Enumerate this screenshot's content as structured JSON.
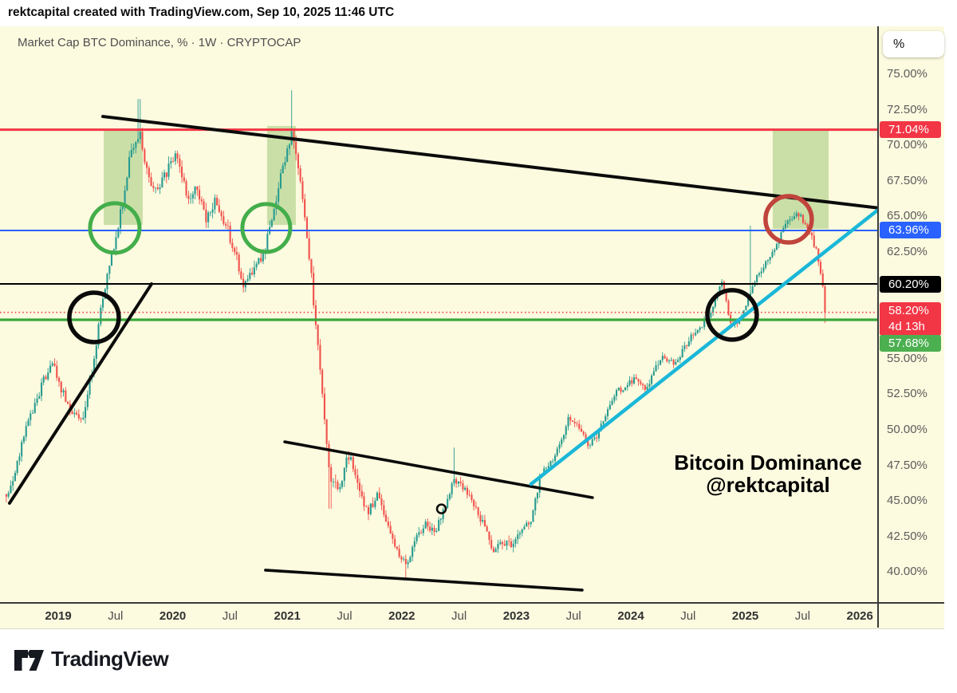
{
  "attribution": "rektcapital created with TradingView.com, Sep 10, 2025 11:46 UTC",
  "chart_title": "Market Cap BTC Dominance, % · 1W · CRYPTOCAP",
  "watermark": {
    "line1": "Bitcoin Dominance",
    "line2": "@rektcapital"
  },
  "axis_unit_button": "%",
  "footer_brand": "TradingView",
  "chart_data": {
    "type": "candlestick",
    "title": "Market Cap BTC Dominance, %",
    "timeframe": "1W",
    "symbol": "CRYPTOCAP",
    "colors": {
      "background": "#FCFADF",
      "candle_up": "#279B8F",
      "candle_down": "#F0514B",
      "level_red": "#F23645",
      "level_blue": "#2962FF",
      "level_black": "#000000",
      "level_green": "#3AA63A",
      "trend_black": "#0b0b0b",
      "trend_cyan": "#1AB7D8",
      "circle_green": "#43AE4B",
      "circle_red": "#C0443C",
      "box_green": "#8FBE63"
    },
    "y_axis": {
      "unit": "%",
      "ticks_visible": [
        75.0,
        72.5,
        70.0,
        67.5,
        65.0,
        62.5,
        55.0,
        52.5,
        50.0,
        47.5,
        45.0,
        42.5,
        40.0
      ]
    },
    "x_axis": {
      "ticks": [
        {
          "t": 2019.0,
          "label": "2019",
          "major": true
        },
        {
          "t": 2019.5,
          "label": "Jul",
          "major": false
        },
        {
          "t": 2020.0,
          "label": "2020",
          "major": true
        },
        {
          "t": 2020.5,
          "label": "Jul",
          "major": false
        },
        {
          "t": 2021.0,
          "label": "2021",
          "major": true
        },
        {
          "t": 2021.5,
          "label": "Jul",
          "major": false
        },
        {
          "t": 2022.0,
          "label": "2022",
          "major": true
        },
        {
          "t": 2022.5,
          "label": "Jul",
          "major": false
        },
        {
          "t": 2023.0,
          "label": "2023",
          "major": true
        },
        {
          "t": 2023.5,
          "label": "Jul",
          "major": false
        },
        {
          "t": 2024.0,
          "label": "2024",
          "major": true
        },
        {
          "t": 2024.5,
          "label": "Jul",
          "major": false
        },
        {
          "t": 2025.0,
          "label": "2025",
          "major": true
        },
        {
          "t": 2025.5,
          "label": "Jul",
          "major": false
        },
        {
          "t": 2026.0,
          "label": "2026",
          "major": true
        }
      ]
    },
    "weekly_close_anchors": [
      [
        "2018-07",
        45.3
      ],
      [
        "2018-08",
        47.0
      ],
      [
        "2018-09",
        50.0
      ],
      [
        "2018-10",
        51.5
      ],
      [
        "2018-11",
        53.5
      ],
      [
        "2018-12",
        54.5
      ],
      [
        "2019-01",
        52.5
      ],
      [
        "2019-02",
        51.0
      ],
      [
        "2019-03",
        50.8
      ],
      [
        "2019-04",
        54.0
      ],
      [
        "2019-05",
        58.5
      ],
      [
        "2019-06",
        62.0
      ],
      [
        "2019-07",
        65.0
      ],
      [
        "2019-08",
        69.0
      ],
      [
        "2019-09",
        71.0
      ],
      [
        "2019-10",
        67.5
      ],
      [
        "2019-11",
        66.8
      ],
      [
        "2019-12",
        68.3
      ],
      [
        "2020-01",
        69.3
      ],
      [
        "2020-02",
        66.3
      ],
      [
        "2020-03",
        67.0
      ],
      [
        "2020-04",
        64.8
      ],
      [
        "2020-05",
        66.0
      ],
      [
        "2020-06",
        64.5
      ],
      [
        "2020-07",
        62.5
      ],
      [
        "2020-08",
        60.0
      ],
      [
        "2020-09",
        61.3
      ],
      [
        "2020-10",
        62.3
      ],
      [
        "2020-11",
        65.0
      ],
      [
        "2020-12",
        68.3
      ],
      [
        "2021-01",
        70.8
      ],
      [
        "2021-02",
        66.8
      ],
      [
        "2021-03",
        61.0
      ],
      [
        "2021-04",
        53.5
      ],
      [
        "2021-05",
        46.3
      ],
      [
        "2021-06",
        46.0
      ],
      [
        "2021-07",
        48.3
      ],
      [
        "2021-08",
        45.8
      ],
      [
        "2021-09",
        44.2
      ],
      [
        "2021-10",
        45.5
      ],
      [
        "2021-11",
        43.2
      ],
      [
        "2021-12",
        41.4
      ],
      [
        "2022-01",
        40.4
      ],
      [
        "2022-02",
        42.4
      ],
      [
        "2022-03",
        43.4
      ],
      [
        "2022-04",
        42.6
      ],
      [
        "2022-05",
        44.6
      ],
      [
        "2022-06",
        46.4
      ],
      [
        "2022-07",
        45.9
      ],
      [
        "2022-08",
        44.6
      ],
      [
        "2022-09",
        43.4
      ],
      [
        "2022-10",
        41.4
      ],
      [
        "2022-11",
        42.1
      ],
      [
        "2022-12",
        41.8
      ],
      [
        "2023-01",
        43.0
      ],
      [
        "2023-02",
        43.4
      ],
      [
        "2023-03",
        46.6
      ],
      [
        "2023-04",
        47.6
      ],
      [
        "2023-05",
        48.7
      ],
      [
        "2023-06",
        50.9
      ],
      [
        "2023-07",
        50.1
      ],
      [
        "2023-08",
        48.9
      ],
      [
        "2023-09",
        49.6
      ],
      [
        "2023-10",
        51.2
      ],
      [
        "2023-11",
        52.6
      ],
      [
        "2023-12",
        53.0
      ],
      [
        "2024-01",
        53.6
      ],
      [
        "2024-02",
        52.6
      ],
      [
        "2024-03",
        54.2
      ],
      [
        "2024-04",
        55.1
      ],
      [
        "2024-05",
        54.6
      ],
      [
        "2024-06",
        55.6
      ],
      [
        "2024-07",
        56.6
      ],
      [
        "2024-08",
        57.4
      ],
      [
        "2024-09",
        58.4
      ],
      [
        "2024-10",
        60.3
      ],
      [
        "2024-11",
        57.3
      ],
      [
        "2024-12",
        57.8
      ],
      [
        "2025-01",
        59.6
      ],
      [
        "2025-02",
        61.0
      ],
      [
        "2025-03",
        62.1
      ],
      [
        "2025-04",
        63.4
      ],
      [
        "2025-05",
        64.6
      ],
      [
        "2025-06",
        65.2
      ],
      [
        "2025-07",
        64.2
      ],
      [
        "2025-08",
        62.5
      ],
      [
        "2025-09",
        58.2
      ]
    ],
    "extra_wicks": {
      "highs": [
        [
          "2019-09",
          73.2
        ],
        [
          "2021-01",
          73.8
        ],
        [
          "2022-06",
          48.7
        ],
        [
          "2025-01",
          64.3
        ]
      ],
      "lows": [
        [
          "2021-05",
          44.4
        ],
        [
          "2022-01",
          39.5
        ],
        [
          "2025-09",
          57.45
        ]
      ]
    },
    "current_price": {
      "value": 58.2,
      "label": "58.20%",
      "countdown": "4d 13h"
    },
    "levels": [
      {
        "value": 71.04,
        "label": "71.04%",
        "color": "#F23645",
        "width": 3,
        "style": "solid"
      },
      {
        "value": 63.96,
        "label": "63.96%",
        "color": "#2962FF",
        "width": 2,
        "style": "solid"
      },
      {
        "value": 60.2,
        "label": "60.20%",
        "color": "#000000",
        "width": 2,
        "style": "solid"
      },
      {
        "value": 58.2,
        "label": "58.20%",
        "color": "#F23645",
        "width": 1.7,
        "style": "dotted",
        "countdown": "4d 13h"
      },
      {
        "value": 57.68,
        "label": "57.68%",
        "color": "#3AA63A",
        "width": 3.2,
        "style": "solid",
        "label_bg": "#4CAF50"
      }
    ],
    "trendlines": [
      {
        "name": "macro-descending-resistance",
        "t1": 2019.39,
        "v1": 71.97,
        "t2": 2026.172,
        "v2": 65.53,
        "color": "#0b0b0b",
        "width": 4
      },
      {
        "name": "ascending-support-2019",
        "t1": 2018.575,
        "v1": 44.79,
        "t2": 2019.815,
        "v2": 60.2,
        "color": "#0b0b0b",
        "width": 4
      },
      {
        "name": "bottom-channel-top",
        "t1": 2020.978,
        "v1": 49.1,
        "t2": 2023.665,
        "v2": 45.18,
        "color": "#0b0b0b",
        "width": 3.6
      },
      {
        "name": "bottom-channel-bottom",
        "t1": 2020.81,
        "v1": 40.08,
        "t2": 2023.575,
        "v2": 38.68,
        "color": "#0b0b0b",
        "width": 3.6
      },
      {
        "name": "cyan-ascending-support",
        "t1": 2023.129,
        "v1": 46.13,
        "t2": 2026.151,
        "v2": 65.36,
        "color": "#1AB7D8",
        "width": 4.5
      }
    ],
    "circles": [
      {
        "name": "black-circle-2019-breakout",
        "t": 2019.313,
        "v": 57.85,
        "r": 31,
        "color": "#0b0b0b",
        "width": 5.5
      },
      {
        "name": "green-circle-2019",
        "t": 2019.494,
        "v": 64.13,
        "r": 31,
        "color": "#43AE4B",
        "width": 5
      },
      {
        "name": "green-circle-2020",
        "t": 2020.817,
        "v": 64.13,
        "r": 30,
        "color": "#43AE4B",
        "width": 5
      },
      {
        "name": "black-circle-2024-retest",
        "t": 2024.884,
        "v": 58.02,
        "r": 31,
        "color": "#0b0b0b",
        "width": 5.5
      },
      {
        "name": "red-circle-2025-rejection",
        "t": 2025.378,
        "v": 64.74,
        "r": 29,
        "color": "#C0443C",
        "width": 5.5
      },
      {
        "name": "small-anchor-dot",
        "t": 2022.346,
        "v": 44.39,
        "r": 5.5,
        "color": "#0b0b0b",
        "width": 2.5
      }
    ],
    "boxes": [
      {
        "name": "green-zone-2019",
        "t1": 2019.397,
        "t2": 2019.738,
        "v1": 64.35,
        "v2": 71.08
      },
      {
        "name": "green-zone-2020",
        "t1": 2020.824,
        "t2": 2021.075,
        "v1": 64.35,
        "v2": 71.3
      },
      {
        "name": "green-zone-2025",
        "t1": 2025.239,
        "t2": 2025.727,
        "v1": 64.07,
        "v2": 70.97
      }
    ]
  }
}
